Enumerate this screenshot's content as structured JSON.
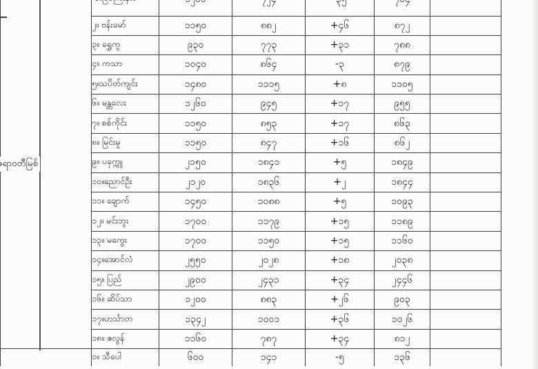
{
  "document": {
    "kind_note": "printed river water-level table (photo, edges cropped)",
    "colors": {
      "background": "#fbfbfa",
      "table_border": "#3f3f3f",
      "text": "#161616"
    }
  },
  "table": {
    "river_label": "ဧရာဝတီမြစ်",
    "river_label_en": "Ayeyarwady River",
    "column_keys": [
      "town",
      "danger_my",
      "current_my",
      "change_my",
      "forecast_my"
    ],
    "rows": [
      {
        "town": "၁။မြစ်ကြီးနား",
        "town_en": "Myitkyina",
        "danger_my": "၁၂၀၀",
        "danger": 1200,
        "current_my": "၇၂၄",
        "current": 724,
        "change_my": "-၃၅",
        "change": -35,
        "forecast_my": "၇၀၄",
        "forecast": 704,
        "clipped_top": true
      },
      {
        "town": "၂။ ဗန်းမော်",
        "town_en": "Bhamo",
        "danger_my": "၁၁၅၀",
        "danger": 1150,
        "current_my": "၈၈၂",
        "current": 882,
        "change_my": "+၄၆",
        "change": 46,
        "forecast_my": "၈၇၂",
        "forecast": 872
      },
      {
        "town": "၃။ ရွှေကူ",
        "town_en": "Shwegu",
        "danger_my": "၉၃၀",
        "danger": 930,
        "current_my": "၇၇၃",
        "current": 773,
        "change_my": "+၃၁",
        "change": 31,
        "forecast_my": "၇၈၈",
        "forecast": 788
      },
      {
        "town": "၄။ ကသာ",
        "town_en": "Katha",
        "danger_my": "၁၀၄၀",
        "danger": 1040,
        "current_my": "၈၆၄",
        "current": 864,
        "change_my": "-၃",
        "change": -3,
        "forecast_my": "၈၇၉",
        "forecast": 879
      },
      {
        "town": "၅။သပိတ်ကျင်း",
        "town_en": "Thabeikkyin",
        "danger_my": "၁၄၈၀",
        "danger": 1480,
        "current_my": "၁၁၁၅",
        "current": 1115,
        "change_my": "+၈",
        "change": 8,
        "forecast_my": "၁၁၀၅",
        "forecast": 1105
      },
      {
        "town": "၆။ မန္တလေး",
        "town_en": "Mandalay",
        "danger_my": "၁၂၆၀",
        "danger": 1260,
        "current_my": "၉၄၅",
        "current": 945,
        "change_my": "+၁၇",
        "change": 17,
        "forecast_my": "၉၅၅",
        "forecast": 955
      },
      {
        "town": "၇။ စစ်ကိုင်း",
        "town_en": "Sagaing",
        "danger_my": "၁၁၅၀",
        "danger": 1150,
        "current_my": "၈၅၃",
        "current": 853,
        "change_my": "+၁၇",
        "change": 17,
        "forecast_my": "၈၆၃",
        "forecast": 863
      },
      {
        "town": "၈။ မြင်းမူ",
        "town_en": "Myinmu",
        "danger_my": "၁၁၅၀",
        "danger": 1150,
        "current_my": "၈၄၇",
        "current": 847,
        "change_my": "+၁၆",
        "change": 16,
        "forecast_my": "၈၆၂",
        "forecast": 862
      },
      {
        "town": "၉။ ပခုက္ကူ",
        "town_en": "Pakokku",
        "danger_my": "၂၁၅၀",
        "danger": 2150,
        "current_my": "၁၈၄၁",
        "current": 1841,
        "change_my": "+၅",
        "change": 5,
        "forecast_my": "၁၈၄၉",
        "forecast": 1849
      },
      {
        "town": "၁၀။ညောင်ဦး",
        "town_en": "Nyaung-U",
        "danger_my": "၂၁၂၀",
        "danger": 2120,
        "current_my": "၁၈၃၆",
        "current": 1836,
        "change_my": "+၂",
        "change": 2,
        "forecast_my": "၁၈၄၄",
        "forecast": 1844
      },
      {
        "town": "၁၁။ ချောက်",
        "town_en": "Chauk",
        "danger_my": "၁၄၅၀",
        "danger": 1450,
        "current_my": "၁၀၈၈",
        "current": 1088,
        "change_my": "+၅",
        "change": 5,
        "forecast_my": "၁၀၉၃",
        "forecast": 1093
      },
      {
        "town": "၁၂။ မင်းဘူး",
        "town_en": "Minbu",
        "danger_my": "၁၇၀၀",
        "danger": 1700,
        "current_my": "၁၁၇၉",
        "current": 1179,
        "change_my": "+၁၅",
        "change": 15,
        "forecast_my": "၁၁၈၉",
        "forecast": 1189
      },
      {
        "town": "၁၃။ မကွေး",
        "town_en": "Magway",
        "danger_my": "၁၇၀၀",
        "danger": 1700,
        "current_my": "၁၁၅၀",
        "current": 1150,
        "change_my": "+၁၅",
        "change": 15,
        "forecast_my": "၁၁၆၀",
        "forecast": 1160
      },
      {
        "town": "၁၄။အောင်လံ",
        "town_en": "Aunglan",
        "danger_my": "၂၅၅၀",
        "danger": 2550,
        "current_my": "၂၀၂၈",
        "current": 2028,
        "change_my": "+၁၈",
        "change": 18,
        "forecast_my": "၂၀၃၈",
        "forecast": 2038
      },
      {
        "town": "၁၅။ ပြည်",
        "town_en": "Pyay",
        "danger_my": "၂၉၀၀",
        "danger": 2900,
        "current_my": "၂၄၃၁",
        "current": 2431,
        "change_my": "+၃၄",
        "change": 34,
        "forecast_my": "၂၄၄၆",
        "forecast": 2446
      },
      {
        "town": "၁၆။ ဆိပ်သာ",
        "town_en": "Seiktha",
        "danger_my": "၁၂၀၀",
        "danger": 1200,
        "current_my": "၈၈၃",
        "current": 883,
        "change_my": "+၂၆",
        "change": 26,
        "forecast_my": "၉၀၃",
        "forecast": 903
      },
      {
        "town": "၁၇။ဟင်္သာတ",
        "town_en": "Hinthada",
        "danger_my": "၁၃၄၂",
        "danger": 1342,
        "current_my": "၁၀၀၁",
        "current": 1001,
        "change_my": "+၃၆",
        "change": 36,
        "forecast_my": "၁၀၂၆",
        "forecast": 1026
      },
      {
        "town": "၁၈။ ဇလွန်",
        "town_en": "Zalun",
        "danger_my": "၁၁၆၀",
        "danger": 1160,
        "current_my": "၇၈၇",
        "current": 787,
        "change_my": "+၃၄",
        "change": 34,
        "forecast_my": "၈၁၂",
        "forecast": 812
      },
      {
        "town": "၁။ သီပေါ",
        "town_en": "Hsipaw",
        "danger_my": "၆၀၀",
        "danger": 600,
        "current_my": "၁၄၁",
        "current": 141,
        "change_my": "-၅",
        "change": -5,
        "forecast_my": "၁၃၆",
        "forecast": 136,
        "new_section": true
      }
    ]
  }
}
